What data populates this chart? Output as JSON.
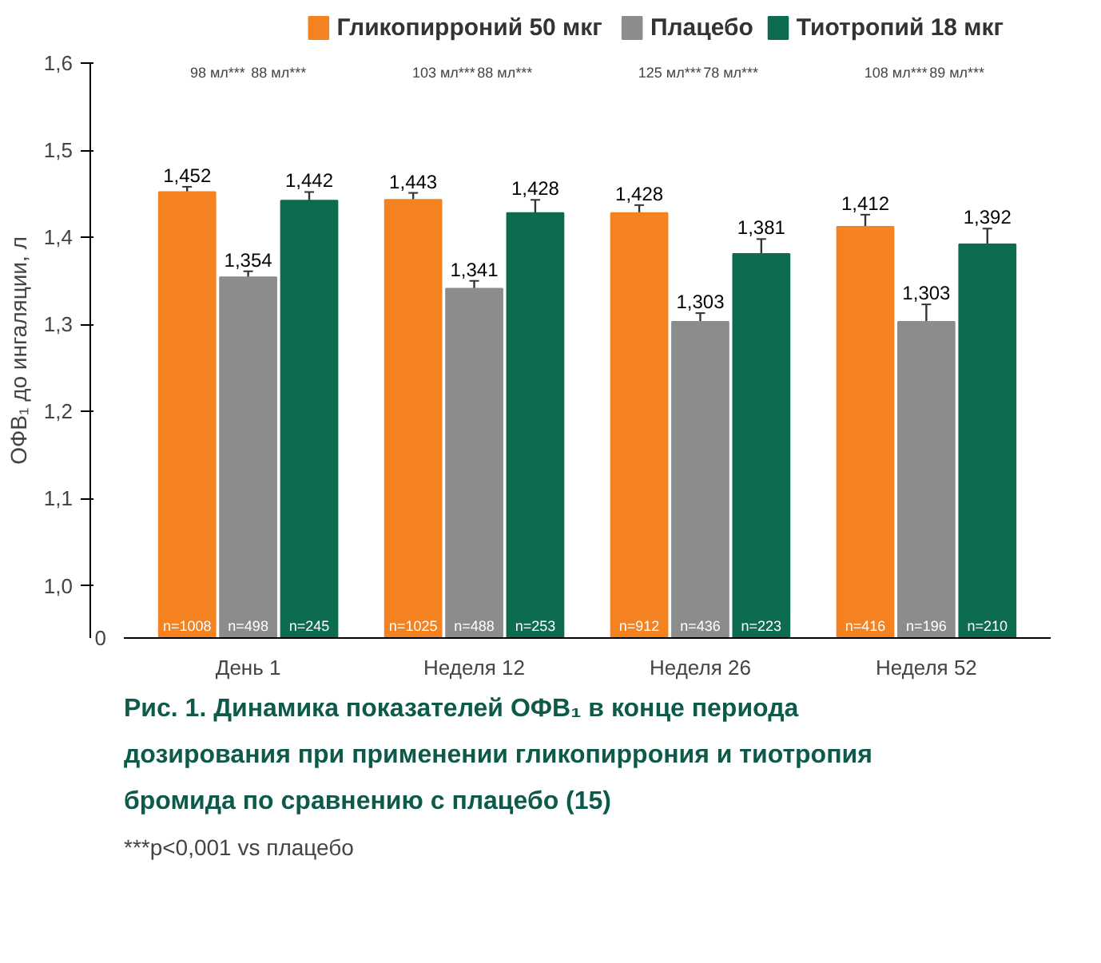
{
  "chart_data": {
    "type": "bar",
    "title": "Рис. 1. Динамика показателей ОФВ₁ в конце периода\nдозирования при применении гликопиррония и тиотропия\nбромида по сравнению с плацебо (15)",
    "ylabel": "ОФВ₁ до ингаляции, л",
    "categories": [
      "День 1",
      "Неделя 12",
      "Неделя 26",
      "Неделя 52"
    ],
    "series": [
      {
        "name": "Гликопирроний 50 мкг",
        "color": "#f58220",
        "values": [
          1.452,
          1.443,
          1.428,
          1.412
        ],
        "value_labels": [
          "1,452",
          "1,443",
          "1,428",
          "1,412"
        ],
        "errors": [
          0.006,
          0.008,
          0.009,
          0.014
        ]
      },
      {
        "name": "Плацебо",
        "color": "#8c8c8c",
        "values": [
          1.354,
          1.341,
          1.303,
          1.303
        ],
        "value_labels": [
          "1,354",
          "1,341",
          "1,303",
          "1,303"
        ],
        "errors": [
          0.007,
          0.009,
          0.01,
          0.02
        ]
      },
      {
        "name": "Тиотропий 18 мкг",
        "color": "#0d6b4f",
        "values": [
          1.442,
          1.428,
          1.381,
          1.392
        ],
        "value_labels": [
          "1,442",
          "1,428",
          "1,381",
          "1,392"
        ],
        "errors": [
          0.01,
          0.015,
          0.017,
          0.018
        ]
      }
    ],
    "ylim": [
      0.94,
      1.6
    ],
    "yticks": [
      {
        "value": 1.0,
        "label": "1,0"
      },
      {
        "value": 1.1,
        "label": "1,1"
      },
      {
        "value": 1.2,
        "label": "1,2"
      },
      {
        "value": 1.3,
        "label": "1,3"
      },
      {
        "value": 1.4,
        "label": "1,4"
      },
      {
        "value": 1.5,
        "label": "1,5"
      },
      {
        "value": 1.6,
        "label": "1,6"
      }
    ],
    "legend": "top",
    "grid": false,
    "annotations": [
      "98 мл***",
      "88 мл***",
      "103 мл***",
      "88 мл***",
      "125 мл***",
      "78 мл***",
      "108 мл***",
      "89 мл***",
      {
        "text": "n=1008",
        "x": "День 1",
        "y": 0.945
      },
      {
        "text": "n=498",
        "x": "День 1",
        "y": 0.945
      },
      {
        "text": "n=245",
        "x": "День 1",
        "y": 0.945
      },
      {
        "text": "n=1025",
        "x": "Неделя 12",
        "y": 0.945
      },
      {
        "text": "n=488",
        "x": "Неделя 12",
        "y": 0.945
      },
      {
        "text": "n=253",
        "x": "Неделя 12",
        "y": 0.945
      },
      {
        "text": "n=912",
        "x": "Неделя 26",
        "y": 0.945
      },
      {
        "text": "n=436",
        "x": "Неделя 26",
        "y": 0.945
      },
      {
        "text": "n=223",
        "x": "Неделя 26",
        "y": 0.945
      },
      {
        "text": "n=416",
        "x": "Неделя 52",
        "y": 0.945
      },
      {
        "text": "n=196",
        "x": "Неделя 52",
        "y": 0.945
      },
      {
        "text": "n=210",
        "x": "Неделя 52",
        "y": 0.945
      },
      "0",
      "***p<0,001 vs плацебо"
    ]
  }
}
